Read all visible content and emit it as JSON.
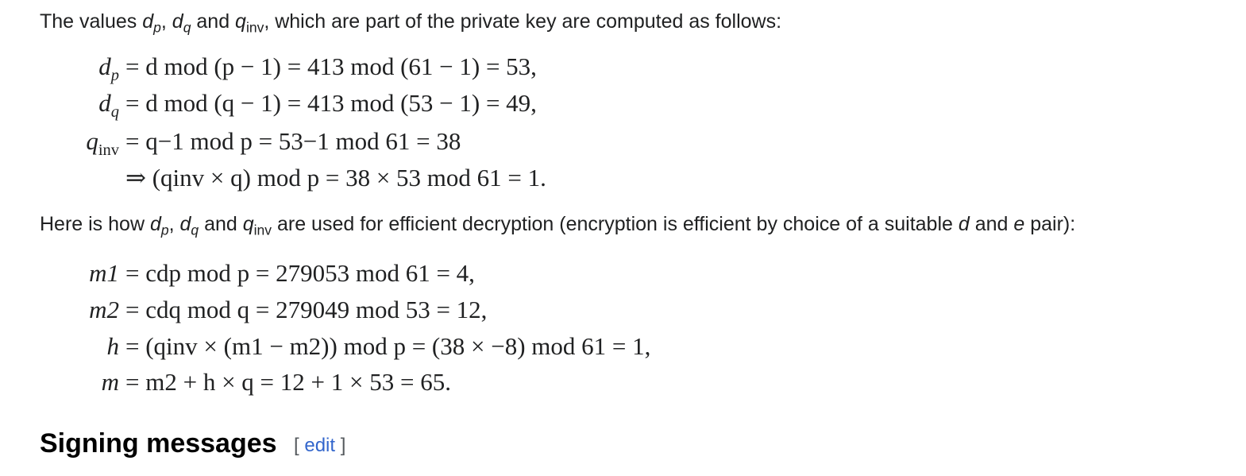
{
  "intro": {
    "text_1": "The values ",
    "text_2": ", ",
    "text_3": " and ",
    "text_4": ", which are part of the private key are computed as follows:",
    "dp_base": "d",
    "dp_sub": "p",
    "dq_base": "d",
    "dq_sub": "q",
    "qinv_base": "q",
    "qinv_sub": "inv"
  },
  "equations_1": [
    {
      "lhs_base": "d",
      "lhs_sub": "p",
      "rhs": "= d mod (p − 1) = 413 mod (61 − 1) = 53,"
    },
    {
      "lhs_base": "d",
      "lhs_sub": "q",
      "rhs": "= d mod (q − 1) = 413 mod (53 − 1) = 49,"
    },
    {
      "lhs_base": "q",
      "lhs_sub": "inv",
      "rhs": "= q−1 mod p = 53−1 mod 61 = 38"
    },
    {
      "lhs_base": "",
      "lhs_sub": "",
      "rhs": "⇒ (qinv × q) mod p = 38 × 53 mod 61 = 1."
    }
  ],
  "middle": {
    "text_1": "Here is how ",
    "text_2": ", ",
    "text_3": " and ",
    "text_4": " are used for efficient decryption (encryption is efficient by choice of a suitable ",
    "text_5": " and ",
    "text_6": " pair):",
    "var_d": "d",
    "var_e": "e"
  },
  "equations_2": [
    {
      "lhs": "m1",
      "rhs": "= cdp mod p = 279053 mod 61 = 4,"
    },
    {
      "lhs": "m2",
      "rhs": "= cdq mod q = 279049 mod 53 = 12,"
    },
    {
      "lhs": "h",
      "rhs": "= (qinv × (m1 − m2)) mod p = (38 × −8) mod 61 = 1,"
    },
    {
      "lhs": "m",
      "rhs": "= m2 + h × q = 12 + 1 × 53 = 65."
    }
  ],
  "section": {
    "heading": "Signing messages",
    "edit_open": "[ ",
    "edit_label": "edit",
    "edit_close": " ]"
  },
  "colors": {
    "text": "#202122",
    "link": "#3366cc",
    "bracket": "#54595d"
  }
}
